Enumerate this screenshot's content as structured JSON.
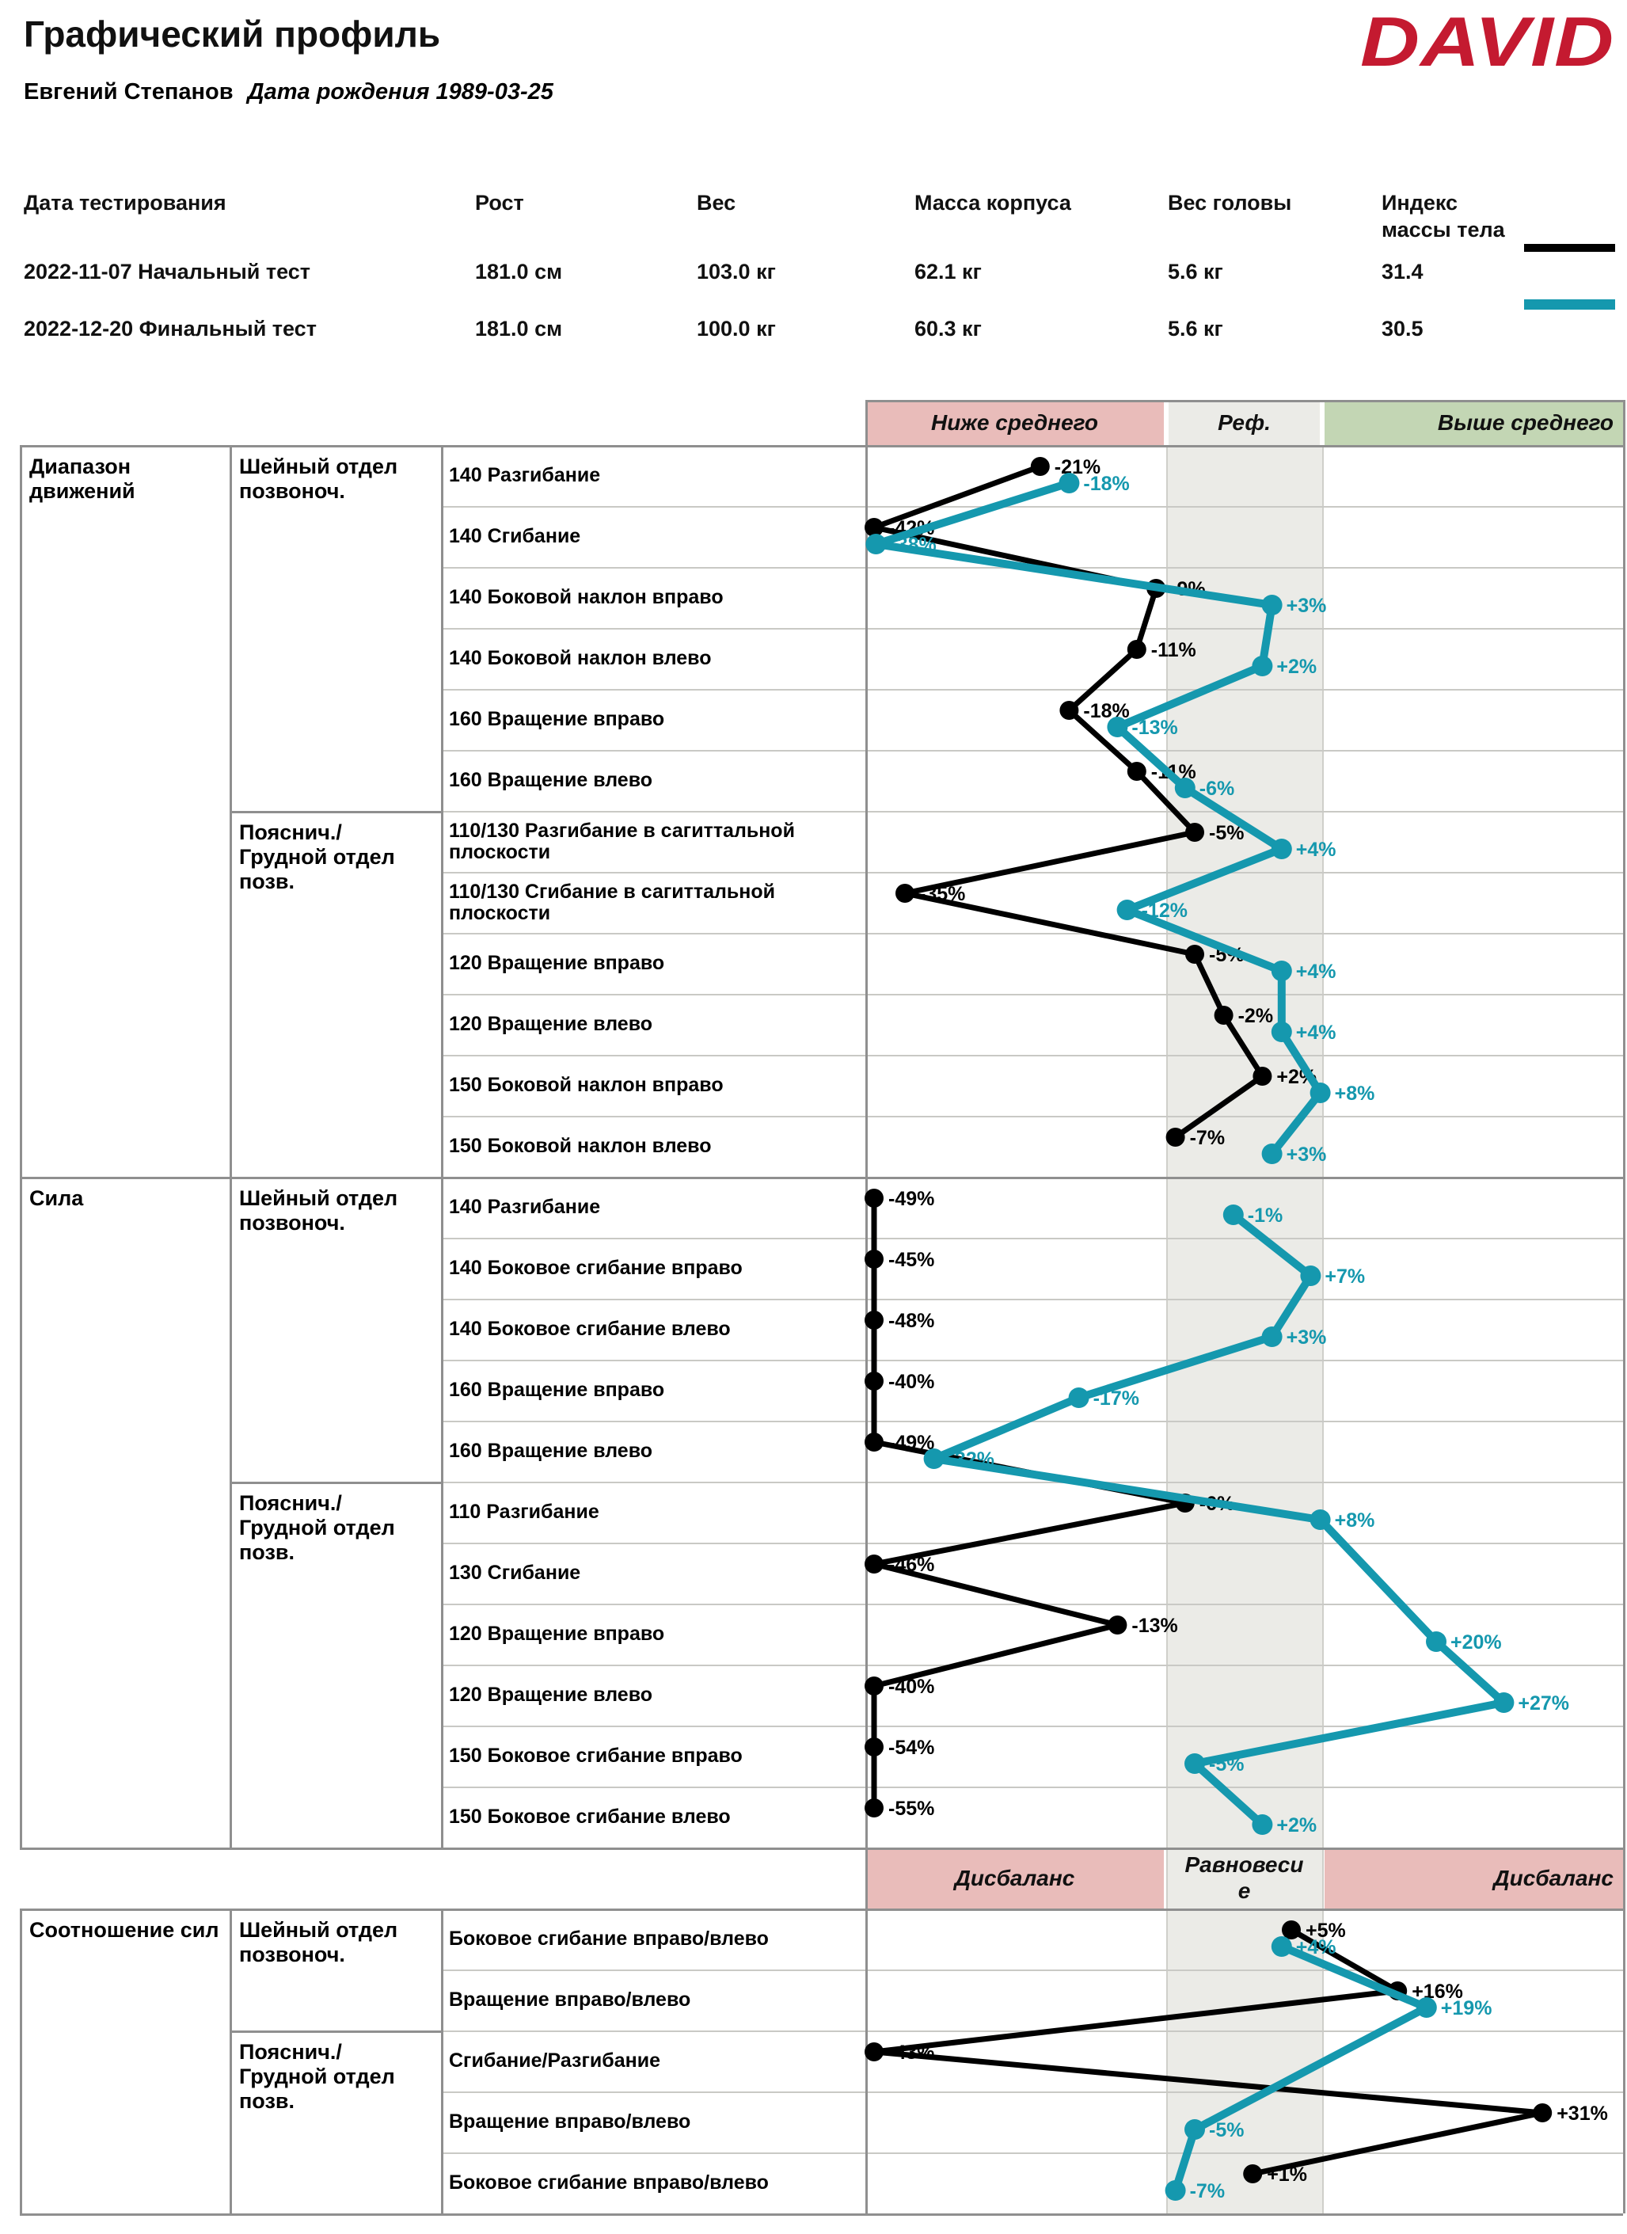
{
  "header": {
    "title": "Графический профиль",
    "logo": "DAVID",
    "patient_name": "Евгений Степанов",
    "birth_text": "Дата рождения 1989-03-25"
  },
  "tests_table": {
    "columns": [
      "Дата тестирования",
      "Рост",
      "Вес",
      "Масса корпуса",
      "Вес головы",
      "Индекс массы тела"
    ],
    "rows": [
      {
        "cells": [
          "2022-11-07 Начальный тест",
          "181.0 см",
          "103.0 кг",
          "62.1 кг",
          "5.6 кг",
          "31.4"
        ]
      },
      {
        "cells": [
          "2022-12-20 Финальный тест",
          "181.0 см",
          "100.0 кг",
          "60.3 кг",
          "5.6 кг",
          "30.5"
        ]
      }
    ]
  },
  "colors": {
    "initial_series": "#000000",
    "final_series": "#1598ae",
    "zone_below_bg": "#e9bcba",
    "zone_ref_bg": "#ebebe7",
    "zone_above_bg": "#c3d6b4",
    "logo_red": "#c41a30"
  },
  "chart": {
    "zones_header": {
      "below": "Ниже среднего",
      "ref": "Реф.",
      "above": "Выше среднего"
    },
    "balance_header": {
      "left": "Дисбаланс",
      "center": "Равновесие",
      "right": "Дисбаланс"
    },
    "series": [
      {
        "name": "Начальный тест",
        "key": "initial",
        "color": "#000000"
      },
      {
        "name": "Финальный тест",
        "key": "final",
        "color": "#1598ae"
      }
    ],
    "sections": [
      {
        "title": "Диапазон движений",
        "groups": [
          {
            "label": "Шейный отдел позвоноч.",
            "rows": [
              {
                "label": "140 Разгибание",
                "initial": {
                  "v": -21,
                  "t": "-21%"
                },
                "final": {
                  "v": -18,
                  "t": "-18%"
                }
              },
              {
                "label": "140 Сгибание",
                "initial": {
                  "v": -42,
                  "t": "-42%"
                },
                "final": {
                  "v": -38,
                  "t": "-38%"
                }
              },
              {
                "label": "140 Боковой наклон вправо",
                "initial": {
                  "v": -9,
                  "t": "-9%"
                },
                "final": {
                  "v": 3,
                  "t": "+3%"
                }
              },
              {
                "label": "140 Боковой наклон влево",
                "initial": {
                  "v": -11,
                  "t": "-11%"
                },
                "final": {
                  "v": 2,
                  "t": "+2%"
                }
              },
              {
                "label": "160 Вращение вправо",
                "initial": {
                  "v": -18,
                  "t": "-18%"
                },
                "final": {
                  "v": -13,
                  "t": "-13%"
                }
              },
              {
                "label": "160 Вращение влево",
                "initial": {
                  "v": -11,
                  "t": "-11%"
                },
                "final": {
                  "v": -6,
                  "t": "-6%"
                }
              }
            ]
          },
          {
            "label": "Пояснич./Грудной отдел позв.",
            "rows": [
              {
                "label": "110/130 Разгибание в сагиттальной плоскости",
                "initial": {
                  "v": -5,
                  "t": "-5%"
                },
                "final": {
                  "v": 4,
                  "t": "+4%"
                }
              },
              {
                "label": "110/130 Сгибание в сагиттальной плоскости",
                "initial": {
                  "v": -35,
                  "t": "-35%"
                },
                "final": {
                  "v": -12,
                  "t": "-12%"
                }
              },
              {
                "label": "120 Вращение вправо",
                "initial": {
                  "v": -5,
                  "t": "-5%"
                },
                "final": {
                  "v": 4,
                  "t": "+4%"
                }
              },
              {
                "label": "120 Вращение влево",
                "initial": {
                  "v": -2,
                  "t": "-2%"
                },
                "final": {
                  "v": 4,
                  "t": "+4%"
                }
              },
              {
                "label": "150 Боковой наклон вправо",
                "initial": {
                  "v": 2,
                  "t": "+2%"
                },
                "final": {
                  "v": 8,
                  "t": "+8%"
                }
              },
              {
                "label": "150 Боковой наклон влево",
                "initial": {
                  "v": -7,
                  "t": "-7%"
                },
                "final": {
                  "v": 3,
                  "t": "+3%"
                }
              }
            ]
          }
        ]
      },
      {
        "title": "Сила",
        "groups": [
          {
            "label": "Шейный отдел позвоноч.",
            "rows": [
              {
                "label": "140 Разгибание",
                "initial": {
                  "v": -49,
                  "t": "-49%"
                },
                "final": {
                  "v": -1,
                  "t": "-1%"
                }
              },
              {
                "label": "140 Боковое сгибание вправо",
                "initial": {
                  "v": -45,
                  "t": "-45%"
                },
                "final": {
                  "v": 7,
                  "t": "+7%"
                }
              },
              {
                "label": "140 Боковое сгибание влево",
                "initial": {
                  "v": -48,
                  "t": "-48%"
                },
                "final": {
                  "v": 3,
                  "t": "+3%"
                }
              },
              {
                "label": "160 Вращение вправо",
                "initial": {
                  "v": -40,
                  "t": "-40%"
                },
                "final": {
                  "v": -17,
                  "t": "-17%"
                }
              },
              {
                "label": "160 Вращение влево",
                "initial": {
                  "v": -49,
                  "t": "-49%"
                },
                "final": {
                  "v": -32,
                  "t": "-32%"
                }
              }
            ]
          },
          {
            "label": "Пояснич./Грудной отдел позв.",
            "rows": [
              {
                "label": "110 Разгибание",
                "initial": {
                  "v": -6,
                  "t": "-6%"
                },
                "final": {
                  "v": 8,
                  "t": "+8%"
                }
              },
              {
                "label": "130 Сгибание",
                "initial": {
                  "v": -46,
                  "t": "-46%"
                },
                "final": null
              },
              {
                "label": "120 Вращение вправо",
                "initial": {
                  "v": -13,
                  "t": "-13%"
                },
                "final": {
                  "v": 20,
                  "t": "+20%"
                }
              },
              {
                "label": "120 Вращение влево",
                "initial": {
                  "v": -40,
                  "t": "-40%"
                },
                "final": {
                  "v": 27,
                  "t": "+27%"
                }
              },
              {
                "label": "150 Боковое сгибание вправо",
                "initial": {
                  "v": -54,
                  "t": "-54%"
                },
                "final": {
                  "v": -5,
                  "t": "-5%"
                }
              },
              {
                "label": "150 Боковое сгибание влево",
                "initial": {
                  "v": -55,
                  "t": "-55%"
                },
                "final": {
                  "v": 2,
                  "t": "+2%"
                }
              }
            ]
          }
        ]
      },
      {
        "title": "Соотношение сил",
        "groups": [
          {
            "label": "Шейный отдел позвоноч.",
            "rows": [
              {
                "label": "Боковое сгибание вправо/влево",
                "initial": {
                  "v": 5,
                  "t": "+5%"
                },
                "final": {
                  "v": 4,
                  "t": "+4%"
                }
              },
              {
                "label": "Вращение вправо/влево",
                "initial": {
                  "v": 16,
                  "t": "+16%"
                },
                "final": {
                  "v": 19,
                  "t": "+19%"
                }
              }
            ]
          },
          {
            "label": "Пояснич./Грудной отдел позв.",
            "rows": [
              {
                "label": "Сгибание/Разгибание",
                "initial": {
                  "v": -43,
                  "t": "-43%"
                },
                "final": null
              },
              {
                "label": "Вращение вправо/влево",
                "initial": {
                  "v": 31,
                  "t": "+31%"
                },
                "final": {
                  "v": -5,
                  "t": "-5%"
                }
              },
              {
                "label": "Боковое сгибание вправо/влево",
                "initial": {
                  "v": 1,
                  "t": "+1%"
                },
                "final": {
                  "v": -7,
                  "t": "-7%"
                }
              }
            ]
          }
        ]
      }
    ]
  }
}
